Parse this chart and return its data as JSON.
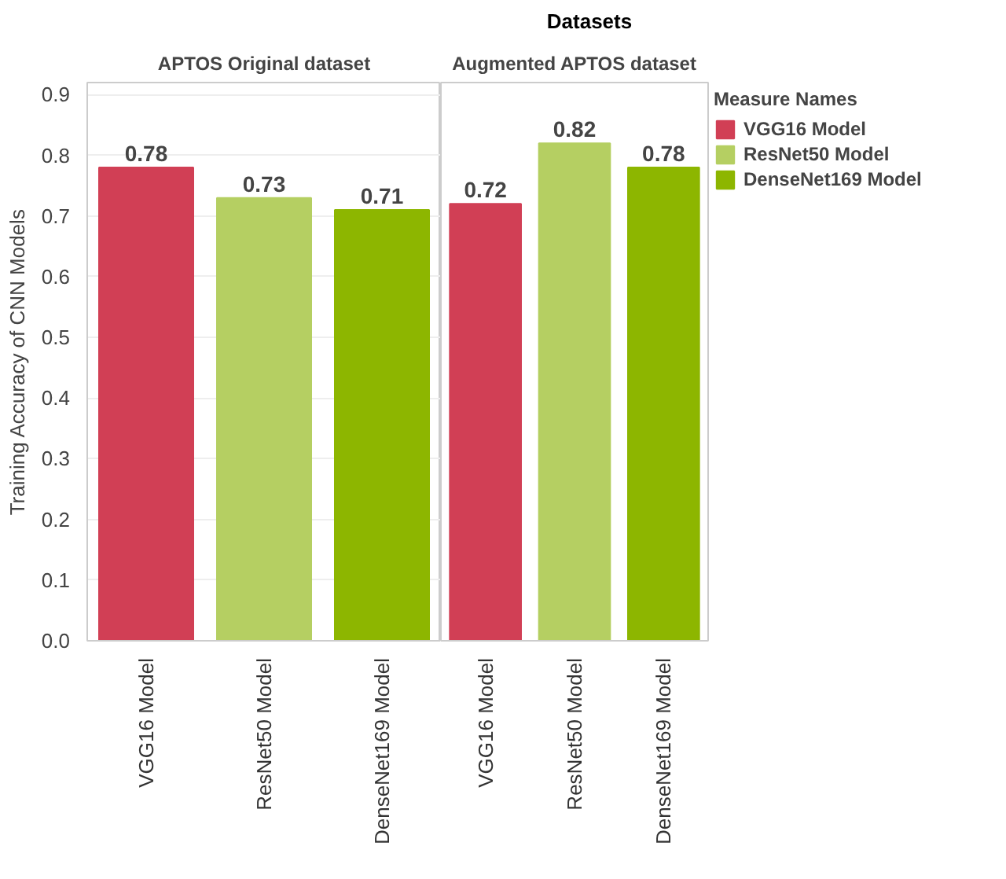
{
  "chart_data": [
    {
      "type": "bar",
      "title": "APTOS Original dataset",
      "annotations": [
        "Datasets"
      ],
      "ylabel": "Training Accuracy of CNN Models",
      "categories": [
        "VGG16 Model",
        "ResNet50 Model",
        "DenseNet169 Model"
      ],
      "series": [
        {
          "color": "#d13f55",
          "values": [
            0.78,
            null,
            null
          ]
        },
        {
          "color": "#b5cf62",
          "values": [
            null,
            0.73,
            null
          ]
        },
        {
          "color": "#8db600",
          "values": [
            null,
            null,
            0.71
          ]
        }
      ],
      "ylim": [
        0,
        0.92
      ],
      "yticks": [
        {
          "value": 0,
          "label": "0.0"
        },
        0.1,
        0.2,
        0.3,
        0.4,
        0.5,
        0.6,
        0.7,
        0.8,
        0.9
      ],
      "grid": "y",
      "data_labels": true
    },
    {
      "type": "bar",
      "title": "Augmented APTOS dataset",
      "categories": [
        "VGG16 Model",
        "ResNet50 Model",
        "DenseNet169 Model"
      ],
      "series": [
        {
          "name": "VGG16 Model",
          "color": "#d13f55",
          "values": [
            0.72,
            null,
            null
          ]
        },
        {
          "name": "ResNet50 Model",
          "color": "#b5cf62",
          "values": [
            null,
            0.82,
            null
          ]
        },
        {
          "name": "DenseNet169 Model",
          "color": "#8db600",
          "values": [
            null,
            null,
            0.78
          ]
        }
      ],
      "ylim": [
        0,
        0.92
      ],
      "tick_labels": "x",
      "grid": "y",
      "data_labels": true,
      "legend": "right",
      "legend_title": "Measure Names"
    }
  ]
}
